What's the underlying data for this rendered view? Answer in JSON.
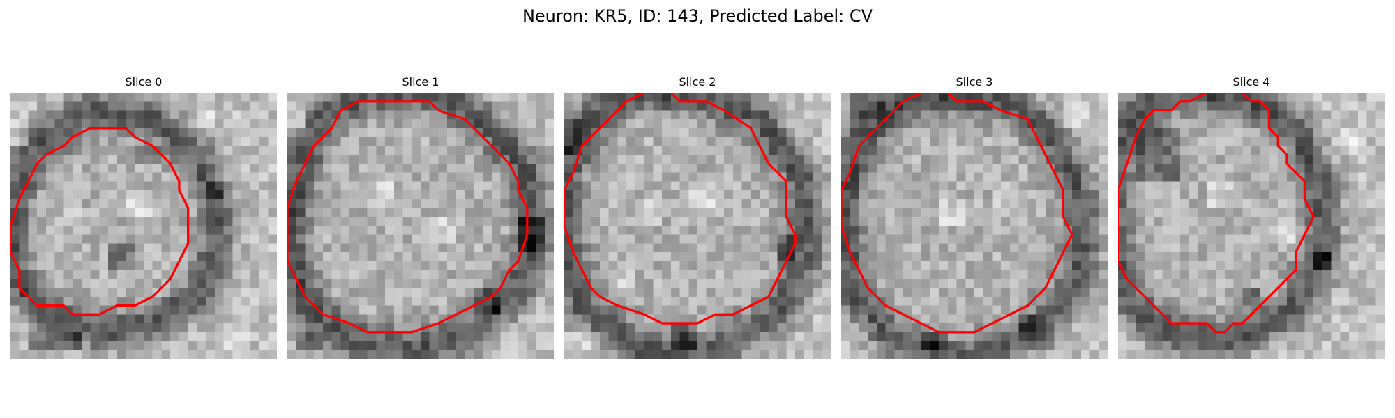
{
  "figure": {
    "title": "Neuron: KR5, ID: 143, Predicted Label: CV"
  },
  "colors": {
    "contour": "#ff0000",
    "background": "#ffffff"
  },
  "panels": [
    {
      "title": "Slice 0",
      "contour": [
        [
          9,
          4
        ],
        [
          13,
          4
        ],
        [
          14,
          5
        ],
        [
          16,
          6
        ],
        [
          17,
          7
        ],
        [
          18,
          8
        ],
        [
          19,
          10
        ],
        [
          19,
          11
        ],
        [
          20,
          13
        ],
        [
          20,
          17
        ],
        [
          19,
          19
        ],
        [
          18,
          21
        ],
        [
          17,
          22
        ],
        [
          16,
          23
        ],
        [
          14,
          24
        ],
        [
          12,
          24
        ],
        [
          10,
          25
        ],
        [
          7,
          25
        ],
        [
          6,
          24
        ],
        [
          3,
          24
        ],
        [
          1,
          22
        ],
        [
          1,
          20
        ],
        [
          0,
          18
        ],
        [
          0,
          15
        ],
        [
          1,
          12
        ],
        [
          2,
          10
        ],
        [
          3,
          8
        ],
        [
          4,
          7
        ],
        [
          6,
          6
        ],
        [
          7,
          5
        ]
      ],
      "dark_ring": [
        [
          9,
          2
        ],
        [
          16,
          3
        ],
        [
          21,
          7
        ],
        [
          23,
          12
        ],
        [
          23,
          18
        ],
        [
          21,
          23
        ],
        [
          16,
          26
        ],
        [
          10,
          27
        ],
        [
          4,
          25
        ],
        [
          0,
          20
        ],
        [
          0,
          12
        ],
        [
          3,
          6
        ]
      ],
      "bright_spots": [
        [
          24,
          26,
          3,
          3
        ],
        [
          13,
          11,
          3,
          3
        ],
        [
          6,
          13,
          2,
          2
        ],
        [
          21,
          2,
          2,
          2
        ],
        [
          0,
          3,
          2,
          3
        ]
      ],
      "dark_spots": [
        [
          11,
          17,
          3,
          3
        ],
        [
          22,
          10,
          2,
          2
        ],
        [
          2,
          27,
          6,
          2
        ],
        [
          14,
          6,
          3,
          2
        ]
      ],
      "seed": 11
    },
    {
      "title": "Slice 1",
      "contour": [
        [
          8,
          1
        ],
        [
          16,
          1
        ],
        [
          17,
          2
        ],
        [
          20,
          3
        ],
        [
          22,
          5
        ],
        [
          24,
          7
        ],
        [
          25,
          8
        ],
        [
          26,
          10
        ],
        [
          26,
          11
        ],
        [
          27,
          13
        ],
        [
          27,
          16
        ],
        [
          26,
          19
        ],
        [
          25,
          20
        ],
        [
          24,
          22
        ],
        [
          23,
          23
        ],
        [
          21,
          24
        ],
        [
          19,
          25
        ],
        [
          17,
          26
        ],
        [
          14,
          27
        ],
        [
          9,
          27
        ],
        [
          7,
          26
        ],
        [
          4,
          25
        ],
        [
          2,
          23
        ],
        [
          1,
          21
        ],
        [
          0,
          19
        ],
        [
          0,
          13
        ],
        [
          1,
          10
        ],
        [
          2,
          8
        ],
        [
          3,
          6
        ],
        [
          5,
          4
        ],
        [
          6,
          2
        ]
      ],
      "dark_ring": [
        [
          8,
          0
        ],
        [
          17,
          0
        ],
        [
          23,
          4
        ],
        [
          27,
          9
        ],
        [
          28,
          16
        ],
        [
          26,
          22
        ],
        [
          21,
          27
        ],
        [
          14,
          29
        ],
        [
          7,
          28
        ],
        [
          2,
          24
        ],
        [
          0,
          17
        ],
        [
          1,
          9
        ],
        [
          4,
          3
        ]
      ],
      "bright_spots": [
        [
          9,
          10,
          3,
          3
        ],
        [
          16,
          14,
          3,
          3
        ],
        [
          0,
          2,
          2,
          2
        ]
      ],
      "dark_spots": [
        [
          26,
          14,
          3,
          4
        ],
        [
          21,
          22,
          3,
          3
        ],
        [
          1,
          27,
          3,
          2
        ]
      ],
      "seed": 23
    },
    {
      "title": "Slice 2",
      "contour": [
        [
          9,
          0
        ],
        [
          12,
          0
        ],
        [
          13,
          1
        ],
        [
          16,
          1
        ],
        [
          18,
          2
        ],
        [
          21,
          4
        ],
        [
          22,
          6
        ],
        [
          23,
          8
        ],
        [
          25,
          10
        ],
        [
          25,
          14
        ],
        [
          26,
          16
        ],
        [
          26,
          17
        ],
        [
          25,
          19
        ],
        [
          24,
          21
        ],
        [
          23,
          23
        ],
        [
          21,
          24
        ],
        [
          19,
          25
        ],
        [
          17,
          25
        ],
        [
          15,
          26
        ],
        [
          11,
          26
        ],
        [
          9,
          25
        ],
        [
          6,
          24
        ],
        [
          4,
          23
        ],
        [
          3,
          22
        ],
        [
          2,
          20
        ],
        [
          1,
          18
        ],
        [
          0,
          15
        ],
        [
          0,
          11
        ],
        [
          1,
          9
        ],
        [
          2,
          6
        ],
        [
          4,
          4
        ],
        [
          6,
          2
        ],
        [
          7,
          1
        ]
      ],
      "dark_ring": [
        [
          7,
          0
        ],
        [
          15,
          0
        ],
        [
          22,
          3
        ],
        [
          27,
          10
        ],
        [
          27,
          19
        ],
        [
          24,
          25
        ],
        [
          17,
          29
        ],
        [
          9,
          29
        ],
        [
          2,
          24
        ],
        [
          0,
          17
        ],
        [
          0,
          9
        ],
        [
          3,
          3
        ]
      ],
      "bright_spots": [
        [
          8,
          12,
          3,
          3
        ],
        [
          14,
          10,
          3,
          3
        ],
        [
          6,
          20,
          2,
          2
        ],
        [
          0,
          27,
          3,
          2
        ]
      ],
      "dark_spots": [
        [
          12,
          26,
          3,
          3
        ],
        [
          24,
          16,
          2,
          3
        ],
        [
          0,
          3,
          2,
          4
        ]
      ],
      "seed": 37
    },
    {
      "title": "Slice 3",
      "contour": [
        [
          9,
          0
        ],
        [
          12,
          0
        ],
        [
          13,
          1
        ],
        [
          16,
          1
        ],
        [
          18,
          2
        ],
        [
          21,
          3
        ],
        [
          22,
          5
        ],
        [
          23,
          7
        ],
        [
          24,
          9
        ],
        [
          25,
          11
        ],
        [
          25,
          14
        ],
        [
          26,
          16
        ],
        [
          25,
          18
        ],
        [
          24,
          20
        ],
        [
          23,
          22
        ],
        [
          21,
          24
        ],
        [
          19,
          25
        ],
        [
          17,
          26
        ],
        [
          15,
          27
        ],
        [
          11,
          27
        ],
        [
          9,
          26
        ],
        [
          7,
          25
        ],
        [
          5,
          24
        ],
        [
          3,
          22
        ],
        [
          2,
          20
        ],
        [
          1,
          18
        ],
        [
          0,
          15
        ],
        [
          0,
          11
        ],
        [
          1,
          9
        ],
        [
          2,
          6
        ],
        [
          4,
          4
        ],
        [
          6,
          2
        ],
        [
          7,
          1
        ]
      ],
      "dark_ring": [
        [
          9,
          0
        ],
        [
          19,
          1
        ],
        [
          24,
          5
        ],
        [
          27,
          12
        ],
        [
          27,
          20
        ],
        [
          22,
          27
        ],
        [
          14,
          30
        ],
        [
          6,
          28
        ],
        [
          1,
          22
        ],
        [
          0,
          13
        ],
        [
          2,
          5
        ]
      ],
      "bright_spots": [
        [
          11,
          12,
          3,
          3
        ],
        [
          17,
          10,
          3,
          3
        ],
        [
          25,
          1,
          3,
          3
        ]
      ],
      "dark_spots": [
        [
          1,
          0,
          4,
          3
        ],
        [
          20,
          25,
          2,
          2
        ],
        [
          9,
          27,
          3,
          2
        ]
      ],
      "seed": 53
    },
    {
      "title": "Slice 4",
      "contour": [
        [
          10,
          0
        ],
        [
          14,
          0
        ],
        [
          15,
          1
        ],
        [
          16,
          1
        ],
        [
          17,
          2
        ],
        [
          17,
          4
        ],
        [
          18,
          5
        ],
        [
          18,
          6
        ],
        [
          19,
          7
        ],
        [
          19,
          8
        ],
        [
          20,
          9
        ],
        [
          21,
          10
        ],
        [
          21,
          12
        ],
        [
          22,
          14
        ],
        [
          21,
          16
        ],
        [
          20,
          18
        ],
        [
          20,
          20
        ],
        [
          19,
          21
        ],
        [
          18,
          22
        ],
        [
          17,
          23
        ],
        [
          16,
          24
        ],
        [
          15,
          25
        ],
        [
          14,
          26
        ],
        [
          13,
          26
        ],
        [
          12,
          27
        ],
        [
          11,
          27
        ],
        [
          10,
          26
        ],
        [
          8,
          26
        ],
        [
          6,
          26
        ],
        [
          5,
          25
        ],
        [
          4,
          24
        ],
        [
          3,
          23
        ],
        [
          2,
          22
        ],
        [
          1,
          21
        ],
        [
          0,
          19
        ],
        [
          0,
          15
        ],
        [
          0,
          11
        ],
        [
          1,
          8
        ],
        [
          2,
          5
        ],
        [
          3,
          3
        ],
        [
          4,
          2
        ],
        [
          6,
          2
        ],
        [
          7,
          1
        ],
        [
          8,
          1
        ]
      ],
      "dark_ring": [
        [
          4,
          0
        ],
        [
          14,
          0
        ],
        [
          20,
          4
        ],
        [
          23,
          11
        ],
        [
          23,
          19
        ],
        [
          19,
          25
        ],
        [
          12,
          28
        ],
        [
          5,
          27
        ],
        [
          0,
          22
        ],
        [
          -1,
          14
        ],
        [
          0,
          6
        ]
      ],
      "bright_spots": [
        [
          10,
          10,
          3,
          3
        ],
        [
          17,
          14,
          3,
          3
        ],
        [
          25,
          4,
          3,
          3
        ]
      ],
      "dark_spots": [
        [
          2,
          4,
          5,
          6
        ],
        [
          22,
          18,
          2,
          2
        ],
        [
          14,
          22,
          2,
          2
        ]
      ],
      "seed": 71
    }
  ]
}
